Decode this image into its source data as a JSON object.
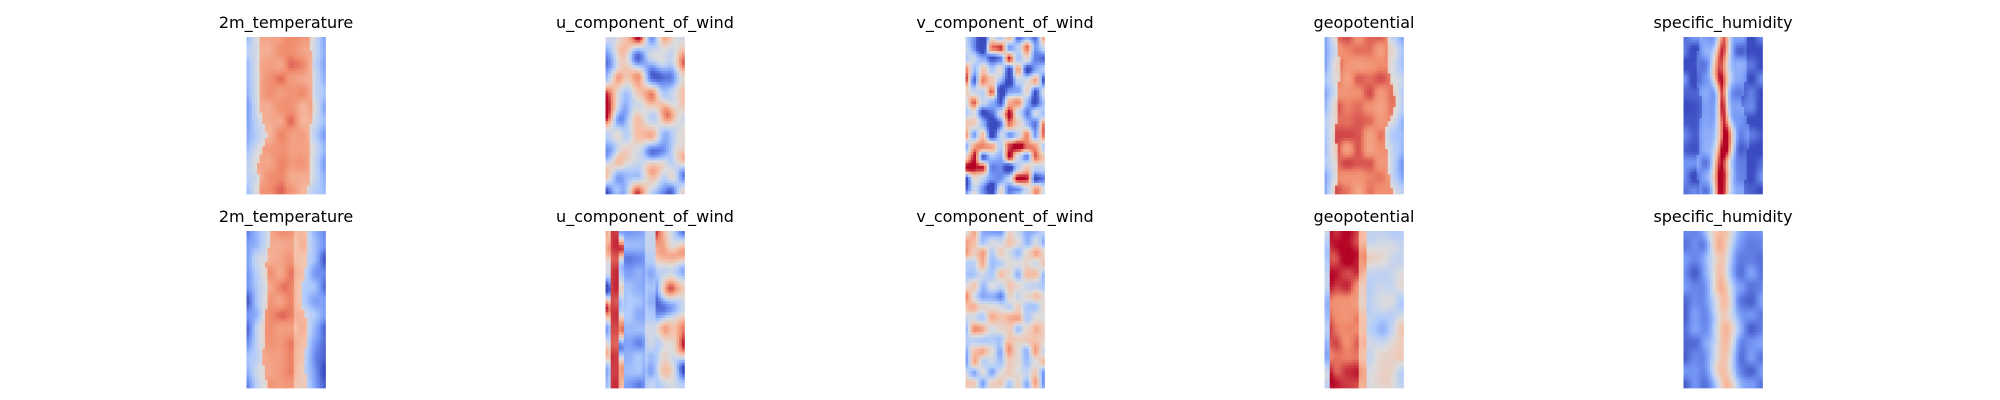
{
  "chart_data": {
    "type": "heatmap",
    "colormap": "coolwarm",
    "colormap_stops": [
      "#3b4cc0",
      "#7396f5",
      "#b0cbfc",
      "#dddcdc",
      "#f6bfa6",
      "#f08a6c",
      "#b40426"
    ],
    "axes": "off",
    "grid": false,
    "legend": "none",
    "layout": {
      "rows": 2,
      "cols": 5
    },
    "panels": [
      {
        "title": "2m_temperature",
        "row": 0,
        "col": 0,
        "pattern": "temp"
      },
      {
        "title": "u_component_of_wind",
        "row": 0,
        "col": 1,
        "pattern": "uwind"
      },
      {
        "title": "v_component_of_wind",
        "row": 0,
        "col": 2,
        "pattern": "vwind"
      },
      {
        "title": "geopotential",
        "row": 0,
        "col": 3,
        "pattern": "geo"
      },
      {
        "title": "specific_humidity",
        "row": 0,
        "col": 4,
        "pattern": "humid"
      },
      {
        "title": "2m_temperature",
        "row": 1,
        "col": 0,
        "pattern": "temp"
      },
      {
        "title": "u_component_of_wind",
        "row": 1,
        "col": 1,
        "pattern": "uwind"
      },
      {
        "title": "v_component_of_wind",
        "row": 1,
        "col": 2,
        "pattern": "vwind"
      },
      {
        "title": "geopotential",
        "row": 1,
        "col": 3,
        "pattern": "geo"
      },
      {
        "title": "specific_humidity",
        "row": 1,
        "col": 4,
        "pattern": "humid"
      }
    ]
  }
}
